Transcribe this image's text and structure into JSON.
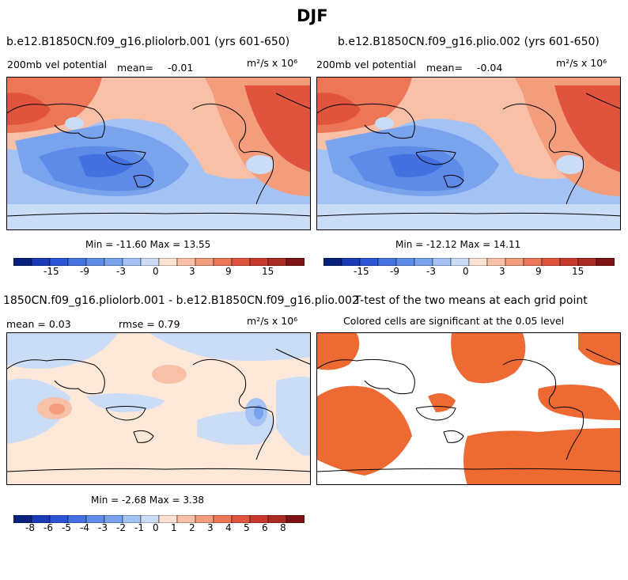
{
  "title": "DJF",
  "panels": [
    {
      "title": "b.e12.B1850CN.f09_g16.pliolorb.001 (yrs 601-650)",
      "variable": "200mb vel potential",
      "mean_label": "mean=",
      "mean_value": "-0.01",
      "units": "m²/s x 10⁶",
      "minmax": "Min = -11.60 Max =  13.55"
    },
    {
      "title": "b.e12.B1850CN.f09_g16.plio.002 (yrs 601-650)",
      "variable": "200mb vel potential",
      "mean_label": "mean=",
      "mean_value": "-0.04",
      "units": "m²/s x 10⁶",
      "minmax": "Min = -12.12 Max =  14.11"
    },
    {
      "title": "1850CN.f09_g16.pliolorb.001 - b.e12.B1850CN.f09_g16.plio.002",
      "mean_text": "mean =   0.03",
      "rmse_text": "rmse =   0.79",
      "units": "m²/s x 10⁶",
      "minmax": "Min = -2.68 Max =  3.38"
    },
    {
      "title": "T-test of the two means at each grid point",
      "subtitle": "Colored cells are significant at the 0.05 level"
    }
  ],
  "legend_top": {
    "colors": [
      "#08217a",
      "#1a3ab8",
      "#2b55d6",
      "#4471e0",
      "#5e8ae8",
      "#7aa3ee",
      "#a4c3f4",
      "#cbdcf7",
      "#fbe2d2",
      "#f8c0a6",
      "#f39d7d",
      "#ec7656",
      "#e0533d",
      "#c8382c",
      "#a92b21",
      "#7f1212"
    ],
    "labels": [
      "-15",
      "-9",
      "-3",
      "0",
      "3",
      "9",
      "15"
    ]
  },
  "legend_bottom": {
    "colors": [
      "#08217a",
      "#1a3ab8",
      "#2b55d6",
      "#4471e0",
      "#5e8ae8",
      "#7aa3ee",
      "#a4c3f4",
      "#cbdcf7",
      "#fbe2d2",
      "#f8c0a6",
      "#f39d7d",
      "#ec7656",
      "#e0533d",
      "#c8382c",
      "#a92b21",
      "#7f1212"
    ],
    "labels": [
      "-8",
      "-6",
      "-5",
      "-4",
      "-3",
      "-2",
      "-1",
      "0",
      "1",
      "2",
      "3",
      "4",
      "5",
      "6",
      "8"
    ]
  },
  "colors": {
    "ttest_significant": "#ee6a33",
    "diff_background": "#fde8da",
    "land": "#000000"
  }
}
